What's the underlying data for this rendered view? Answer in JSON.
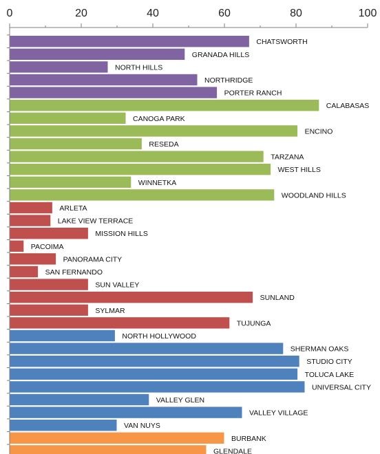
{
  "chart_data": {
    "type": "bar",
    "orientation": "horizontal",
    "xlim": [
      0,
      100
    ],
    "x_ticks": [
      "0",
      "20",
      "40",
      "60",
      "80",
      "100"
    ],
    "grid": false,
    "colors": {
      "purple": "#8064a2",
      "green": "#9bbb59",
      "red": "#c0504d",
      "blue": "#4f81bd",
      "orange": "#f79646"
    },
    "series": [
      {
        "color": "purple",
        "categories": [
          "CHATSWORTH",
          "GRANADA HILLS",
          "NORTH HILLS",
          "NORTHRIDGE",
          "PORTER RANCH"
        ],
        "values": [
          67,
          49,
          27.5,
          52.5,
          58
        ]
      },
      {
        "color": "green",
        "categories": [
          "CALABASAS",
          "CANOGA PARK",
          "ENCINO",
          "RESEDA",
          "TARZANA",
          "WEST HILLS",
          "WINNETKA",
          "WOODLAND HILLS"
        ],
        "values": [
          86.5,
          32.5,
          80.5,
          37,
          71,
          73,
          34,
          74
        ]
      },
      {
        "color": "red",
        "categories": [
          "ARLETA",
          "LAKE VIEW TERRACE",
          "MISSION HILLS",
          "PACOIMA",
          "PANORAMA CITY",
          "SAN FERNANDO",
          "SUN VALLEY",
          "SUNLAND",
          "SYLMAR",
          "TUJUNGA"
        ],
        "values": [
          12,
          11.5,
          22,
          4,
          13,
          8,
          22,
          68,
          22,
          61.5
        ]
      },
      {
        "color": "blue",
        "categories": [
          "NORTH HOLLYWOOD",
          "SHERMAN OAKS",
          "STUDIO CITY",
          "TOLUCA LAKE",
          "UNIVERSAL CITY",
          "VALLEY GLEN",
          "VALLEY VILLAGE",
          "VAN NUYS"
        ],
        "values": [
          29.5,
          76.5,
          81,
          80.5,
          82.5,
          39,
          65,
          30
        ]
      },
      {
        "color": "orange",
        "categories": [
          "BURBANK",
          "GLENDALE"
        ],
        "values": [
          60,
          55
        ]
      }
    ]
  }
}
